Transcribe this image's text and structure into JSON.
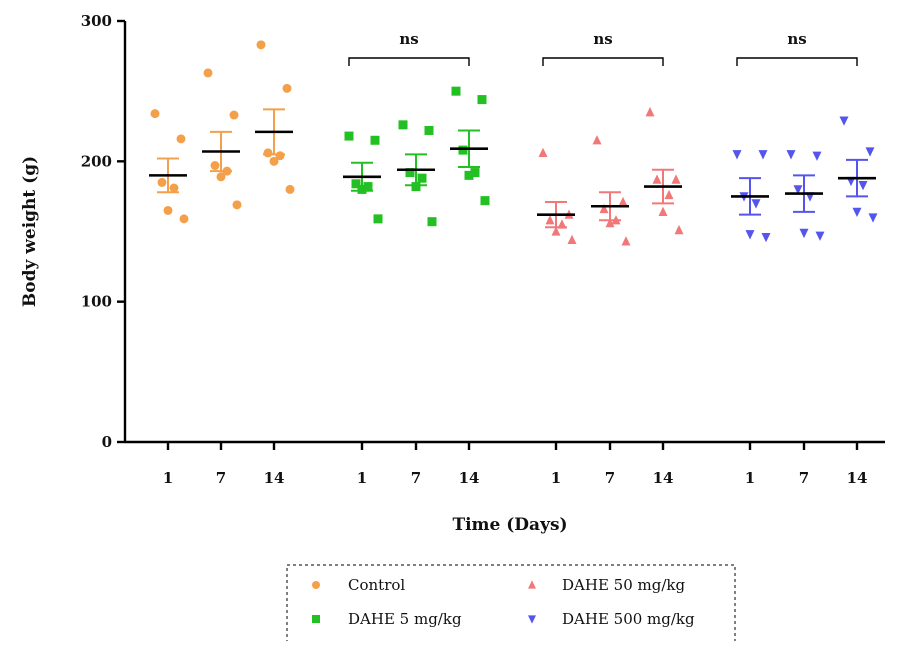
{
  "chart_data": {
    "type": "scatter",
    "ylabel": "Body weight (g)",
    "xlabel": "Time (Days)",
    "ylim": [
      0,
      300
    ],
    "yticks": [
      0,
      100,
      200,
      300
    ],
    "grid": false,
    "legend_position": "bottom",
    "series": [
      {
        "name": "Control",
        "color": "#F4A04A",
        "marker": "circle",
        "groups": [
          {
            "day": "1",
            "points": [
              234,
              216,
              185,
              181,
              165,
              159
            ],
            "mean": 190,
            "sem": 12
          },
          {
            "day": "7",
            "points": [
              263,
              233,
              197,
              193,
              189,
              169
            ],
            "mean": 207,
            "sem": 14
          },
          {
            "day": "14",
            "points": [
              283,
              252,
              206,
              204,
              200,
              180
            ],
            "mean": 221,
            "sem": 16
          }
        ]
      },
      {
        "name": "DAHE 5 mg/kg",
        "color": "#22C022",
        "marker": "square",
        "groups": [
          {
            "day": "1",
            "points": [
              218,
              215,
              184,
              182,
              180,
              159
            ],
            "mean": 189,
            "sem": 10
          },
          {
            "day": "7",
            "points": [
              226,
              222,
              192,
              188,
              182,
              157
            ],
            "mean": 194,
            "sem": 11
          },
          {
            "day": "14",
            "points": [
              250,
              244,
              208,
              192,
              190,
              172
            ],
            "mean": 209,
            "sem": 13
          }
        ]
      },
      {
        "name": "DAHE 50 mg/kg",
        "color": "#F07878",
        "marker": "triangle-up",
        "groups": [
          {
            "day": "1",
            "points": [
              206,
              162,
              158,
              155,
              150,
              144
            ],
            "mean": 162,
            "sem": 9
          },
          {
            "day": "7",
            "points": [
              215,
              171,
              166,
              158,
              156,
              143
            ],
            "mean": 168,
            "sem": 10
          },
          {
            "day": "14",
            "points": [
              235,
              187,
              187,
              176,
              164,
              151
            ],
            "mean": 182,
            "sem": 12
          }
        ]
      },
      {
        "name": "DAHE 500 mg/kg",
        "color": "#5555EE",
        "marker": "triangle-down",
        "groups": [
          {
            "day": "1",
            "points": [
              205,
              205,
              175,
              170,
              148,
              146
            ],
            "mean": 175,
            "sem": 13
          },
          {
            "day": "7",
            "points": [
              205,
              204,
              180,
              175,
              149,
              147
            ],
            "mean": 177,
            "sem": 13
          },
          {
            "day": "14",
            "points": [
              229,
              207,
              186,
              183,
              164,
              160
            ],
            "mean": 188,
            "sem": 13
          }
        ]
      }
    ],
    "annotations": [
      {
        "text": "ns",
        "groups": [
          1
        ]
      },
      {
        "text": "ns",
        "groups": [
          2
        ]
      },
      {
        "text": "ns",
        "groups": [
          3
        ]
      }
    ]
  }
}
